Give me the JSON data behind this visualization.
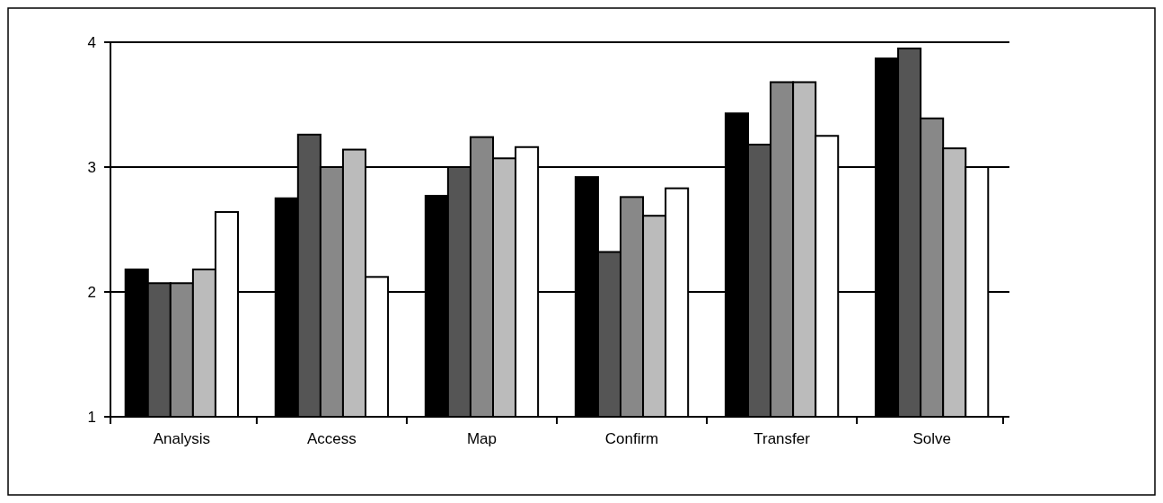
{
  "chart_data": {
    "type": "bar",
    "categories": [
      "Analysis",
      "Access",
      "Map",
      "Confirm",
      "Transfer",
      "Solve"
    ],
    "series": [
      {
        "color": "#000000",
        "values": [
          2.18,
          2.75,
          2.77,
          2.92,
          3.43,
          3.87
        ]
      },
      {
        "color": "#555555",
        "values": [
          2.07,
          3.26,
          3.0,
          2.32,
          3.18,
          3.95
        ]
      },
      {
        "color": "#888888",
        "values": [
          2.07,
          3.0,
          3.24,
          2.76,
          3.68,
          3.39
        ]
      },
      {
        "color": "#bbbbbb",
        "values": [
          2.18,
          3.14,
          3.07,
          2.61,
          3.68,
          3.15
        ]
      },
      {
        "color": "#ffffff",
        "values": [
          2.64,
          2.12,
          3.16,
          2.83,
          3.25,
          3.0
        ]
      }
    ],
    "ylim": [
      1,
      4
    ],
    "yticks": [
      1,
      2,
      3,
      4
    ],
    "grid": "y"
  }
}
